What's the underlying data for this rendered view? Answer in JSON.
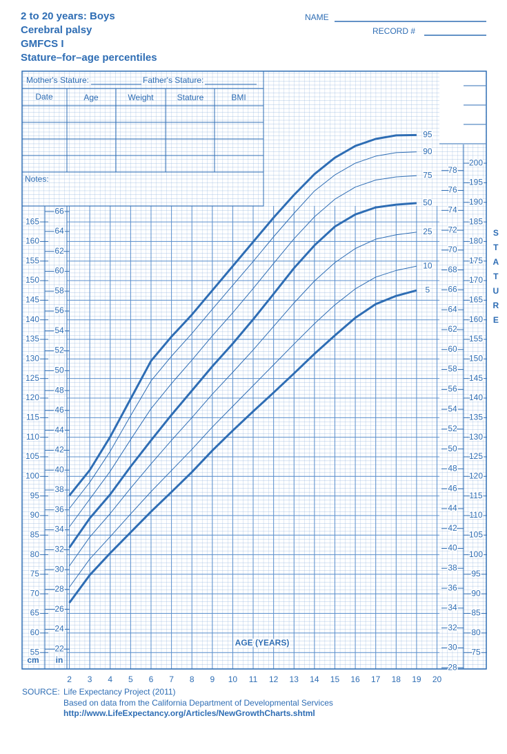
{
  "header": {
    "title_lines": [
      "2 to 20 years: Boys",
      "Cerebral palsy",
      "GMFCS I",
      "Stature–for–age percentiles"
    ],
    "name_label": "NAME",
    "record_label": "RECORD #"
  },
  "form": {
    "mothers_stature": "Mother's Stature:",
    "fathers_stature": "Father's Stature:",
    "columns": [
      "Date",
      "Age",
      "Weight",
      "Stature",
      "BMI"
    ],
    "notes": "Notes:"
  },
  "chart_data": {
    "type": "line",
    "xlabel": "AGE (YEARS)",
    "ylabel": "STATURE",
    "y_units": [
      "cm",
      "in"
    ],
    "x": [
      2,
      3,
      4,
      5,
      6,
      7,
      8,
      9,
      10,
      11,
      12,
      13,
      14,
      15,
      16,
      17,
      18,
      19
    ],
    "series": [
      {
        "name": "95",
        "color": "#2e6db4",
        "line_width": 3,
        "values": [
          95.1,
          101.6,
          110.1,
          119.8,
          129.5,
          135.7,
          141.3,
          147.5,
          153.7,
          159.9,
          166.1,
          171.9,
          177.2,
          181.4,
          184.4,
          186.2,
          187.1,
          187.2
        ]
      },
      {
        "name": "90",
        "color": "#2e6db4",
        "line_width": 1,
        "values": [
          91.8,
          98.5,
          106.4,
          115.5,
          124.4,
          130.7,
          136.5,
          142.7,
          148.8,
          154.9,
          161.2,
          167.2,
          172.9,
          177,
          180,
          181.8,
          182.7,
          182.9
        ]
      },
      {
        "name": "75",
        "color": "#2e6db4",
        "line_width": 1,
        "values": [
          87.1,
          94.2,
          101.3,
          109.4,
          117.3,
          123.7,
          129.7,
          135.9,
          141.8,
          148,
          154.4,
          160.7,
          166.3,
          170.8,
          173.9,
          175.7,
          176.5,
          176.8
        ]
      },
      {
        "name": "50",
        "color": "#2e6db4",
        "line_width": 3,
        "values": [
          81.8,
          89.3,
          95.4,
          102.5,
          109.2,
          115.7,
          121.9,
          128.1,
          133.9,
          140.1,
          146.6,
          153.2,
          159,
          163.8,
          166.9,
          168.7,
          169.4,
          169.8
        ]
      },
      {
        "name": "25",
        "color": "#2e6db4",
        "line_width": 1,
        "values": [
          77.1,
          84.5,
          90.5,
          97,
          103.2,
          109.2,
          115,
          121,
          126.6,
          132.3,
          138.3,
          144.3,
          149.9,
          154.6,
          158.2,
          160.6,
          161.7,
          162.4
        ]
      },
      {
        "name": "10",
        "color": "#2e6db4",
        "line_width": 1,
        "values": [
          71.7,
          78.9,
          84.6,
          90.4,
          96.1,
          101.5,
          106.9,
          112.6,
          117.9,
          123.2,
          128.5,
          133.8,
          139,
          143.8,
          147.9,
          150.9,
          152.6,
          153.7
        ]
      },
      {
        "name": "5",
        "color": "#2e6db4",
        "line_width": 3,
        "values": [
          67.7,
          74.8,
          80.4,
          85.7,
          91,
          96,
          101.1,
          106.6,
          111.7,
          116.6,
          121.4,
          126.3,
          131.3,
          136,
          140.5,
          144,
          146.1,
          147.5
        ]
      }
    ],
    "xlim": [
      0.8,
      21.3
    ],
    "xticks": [
      2,
      3,
      4,
      5,
      6,
      7,
      8,
      9,
      10,
      11,
      12,
      13,
      14,
      15,
      16,
      17,
      18,
      19,
      20
    ],
    "ylim": [
      50.8,
      203.5
    ],
    "yticks": [
      55,
      60,
      65,
      70,
      75,
      80,
      85,
      90,
      95,
      100,
      105,
      110,
      115,
      120,
      125,
      130,
      135,
      140,
      145,
      150,
      155,
      160,
      165
    ],
    "yticks_in": [
      22,
      24,
      26,
      28,
      30,
      32,
      34,
      36,
      38,
      40,
      42,
      44,
      46,
      48,
      50,
      52,
      54,
      56,
      58,
      60,
      62,
      64,
      66
    ],
    "y2lim": [
      70.8,
      223.5
    ],
    "y2ticks": [
      75,
      80,
      85,
      90,
      95,
      100,
      105,
      110,
      115,
      120,
      125,
      130,
      135,
      140,
      145,
      150,
      155,
      160,
      165,
      170,
      175,
      180,
      185,
      190,
      195,
      200
    ],
    "y2ticks_in": [
      28,
      30,
      32,
      34,
      36,
      38,
      40,
      42,
      44,
      46,
      48,
      50,
      52,
      54,
      56,
      58,
      60,
      62,
      64,
      66,
      68,
      70,
      72,
      74,
      76,
      78
    ],
    "grid": true
  },
  "source": {
    "label": "SOURCE:",
    "lines": [
      "Life Expectancy Project (2011)",
      "Based on data from the California Department of Developmental Services",
      "http://www.LifeExpectancy.org/Articles/NewGrowthCharts.shtml"
    ]
  }
}
